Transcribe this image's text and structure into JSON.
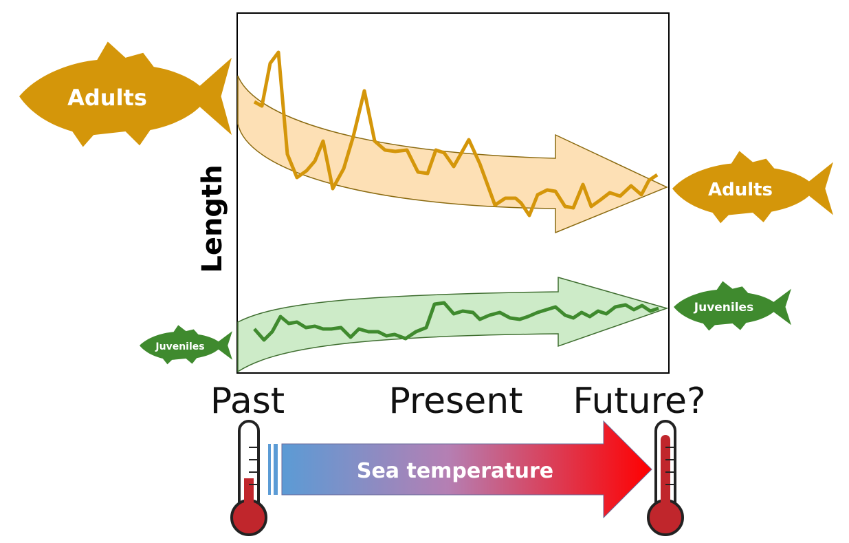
{
  "axis": {
    "y_label": "Length"
  },
  "fish": {
    "adults_left": "Adults",
    "adults_right": "Adults",
    "juveniles_left": "Juveniles",
    "juveniles_right": "Juveniles"
  },
  "timeline": {
    "past": "Past",
    "present": "Present",
    "future": "Future?"
  },
  "temperature": {
    "label": "Sea temperature"
  },
  "colors": {
    "adult": "#d4960a",
    "adult_band": "#fde0b5",
    "juvenile": "#3f8a2e",
    "juvenile_band": "#cdebc8",
    "temp_cold": "#5b9bd5",
    "temp_hot": "#ff0000",
    "thermo_red": "#c0262c"
  },
  "icons": [
    "adult-fish-icon",
    "juvenile-fish-icon",
    "thermometer-icon"
  ]
}
